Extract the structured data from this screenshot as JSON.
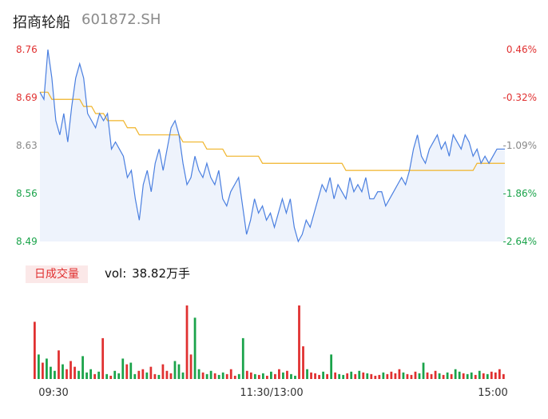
{
  "header": {
    "name": "招商轮船",
    "code": "601872.SH"
  },
  "volume_panel": {
    "badge": "日成交量",
    "label": "vol:",
    "value": "38.82万手"
  },
  "colors": {
    "price_line": "#4a7fe0",
    "avg_line": "#f0b429",
    "area_fill": "#eef3fc",
    "up": "#e03030",
    "down": "#1aa34a",
    "gray": "#888888"
  },
  "chart_data": {
    "type": "line",
    "title": "",
    "price_ticks": [
      "8.76",
      "8.69",
      "8.63",
      "8.56",
      "8.49"
    ],
    "pct_ticks": [
      "0.46%",
      "-0.32%",
      "-1.09%",
      "-1.86%",
      "-2.64%"
    ],
    "x_ticks": [
      "09:30",
      "11:30/13:00",
      "15:00"
    ],
    "ylim": [
      8.49,
      8.76
    ],
    "price": [
      8.7,
      8.69,
      8.76,
      8.72,
      8.66,
      8.64,
      8.67,
      8.63,
      8.68,
      8.72,
      8.74,
      8.72,
      8.67,
      8.66,
      8.65,
      8.67,
      8.66,
      8.67,
      8.62,
      8.63,
      8.62,
      8.61,
      8.58,
      8.59,
      8.55,
      8.52,
      8.57,
      8.59,
      8.56,
      8.6,
      8.62,
      8.59,
      8.62,
      8.65,
      8.66,
      8.64,
      8.6,
      8.57,
      8.58,
      8.61,
      8.59,
      8.58,
      8.6,
      8.58,
      8.57,
      8.59,
      8.55,
      8.54,
      8.56,
      8.57,
      8.58,
      8.54,
      8.5,
      8.52,
      8.55,
      8.53,
      8.54,
      8.52,
      8.53,
      8.51,
      8.53,
      8.55,
      8.53,
      8.55,
      8.51,
      8.49,
      8.5,
      8.52,
      8.51,
      8.53,
      8.55,
      8.57,
      8.56,
      8.58,
      8.55,
      8.57,
      8.56,
      8.55,
      8.58,
      8.56,
      8.57,
      8.56,
      8.58,
      8.55,
      8.55,
      8.56,
      8.56,
      8.54,
      8.55,
      8.56,
      8.57,
      8.58,
      8.57,
      8.59,
      8.62,
      8.64,
      8.61,
      8.6,
      8.62,
      8.63,
      8.64,
      8.62,
      8.63,
      8.61,
      8.64,
      8.63,
      8.62,
      8.64,
      8.63,
      8.61,
      8.62,
      8.6,
      8.61,
      8.6,
      8.61,
      8.62,
      8.62,
      8.62
    ],
    "avg": [
      8.7,
      8.7,
      8.7,
      8.69,
      8.69,
      8.69,
      8.69,
      8.69,
      8.69,
      8.69,
      8.69,
      8.68,
      8.68,
      8.68,
      8.67,
      8.67,
      8.67,
      8.66,
      8.66,
      8.66,
      8.66,
      8.66,
      8.65,
      8.65,
      8.65,
      8.64,
      8.64,
      8.64,
      8.64,
      8.64,
      8.64,
      8.64,
      8.64,
      8.64,
      8.64,
      8.64,
      8.63,
      8.63,
      8.63,
      8.63,
      8.63,
      8.63,
      8.62,
      8.62,
      8.62,
      8.62,
      8.62,
      8.61,
      8.61,
      8.61,
      8.61,
      8.61,
      8.61,
      8.61,
      8.61,
      8.61,
      8.6,
      8.6,
      8.6,
      8.6,
      8.6,
      8.6,
      8.6,
      8.6,
      8.6,
      8.6,
      8.6,
      8.6,
      8.6,
      8.6,
      8.6,
      8.6,
      8.6,
      8.6,
      8.6,
      8.6,
      8.6,
      8.59,
      8.59,
      8.59,
      8.59,
      8.59,
      8.59,
      8.59,
      8.59,
      8.59,
      8.59,
      8.59,
      8.59,
      8.59,
      8.59,
      8.59,
      8.59,
      8.59,
      8.59,
      8.59,
      8.59,
      8.59,
      8.59,
      8.59,
      8.59,
      8.59,
      8.59,
      8.59,
      8.59,
      8.59,
      8.59,
      8.59,
      8.59,
      8.59,
      8.6,
      8.6,
      8.6,
      8.6,
      8.6,
      8.6,
      8.6,
      8.6
    ],
    "volume": [
      70,
      30,
      20,
      25,
      15,
      10,
      35,
      18,
      12,
      22,
      15,
      10,
      28,
      8,
      12,
      6,
      9,
      50,
      6,
      4,
      10,
      7,
      25,
      18,
      20,
      6,
      10,
      12,
      8,
      15,
      6,
      5,
      18,
      10,
      7,
      22,
      18,
      8,
      90,
      30,
      75,
      12,
      8,
      6,
      10,
      7,
      5,
      8,
      6,
      12,
      4,
      6,
      50,
      10,
      8,
      6,
      5,
      7,
      4,
      9,
      6,
      12,
      8,
      10,
      6,
      4,
      90,
      40,
      12,
      8,
      7,
      5,
      9,
      6,
      30,
      8,
      6,
      5,
      7,
      9,
      6,
      10,
      8,
      7,
      6,
      4,
      5,
      8,
      6,
      9,
      7,
      12,
      8,
      6,
      5,
      9,
      7,
      20,
      8,
      6,
      10,
      7,
      5,
      8,
      6,
      12,
      9,
      7,
      6,
      8,
      5,
      10,
      7,
      6,
      9,
      8,
      12,
      6
    ]
  }
}
